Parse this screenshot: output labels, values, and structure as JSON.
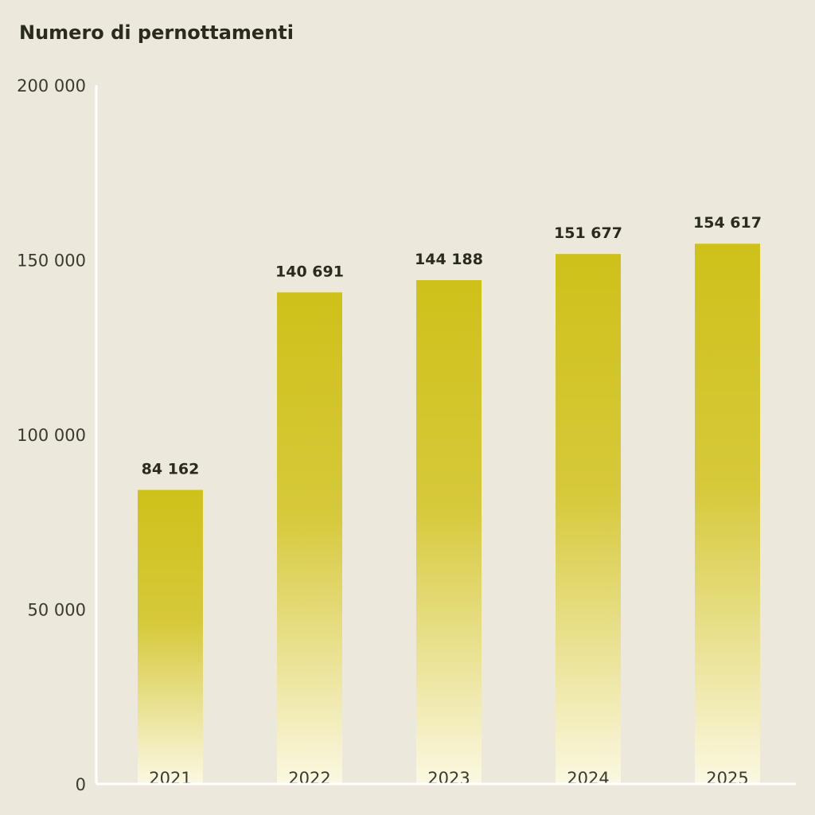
{
  "chart_data": {
    "type": "bar",
    "title": "Numero di pernottamenti",
    "categories": [
      "2021",
      "2022",
      "2023",
      "2024",
      "2025"
    ],
    "values": [
      84162,
      140691,
      144188,
      151677,
      154617
    ],
    "value_labels": [
      "84 162",
      "140 691",
      "144 188",
      "151 677",
      "154 617"
    ],
    "ylim": [
      0,
      200000
    ],
    "y_ticks": [
      0,
      50000,
      100000,
      150000,
      200000
    ],
    "y_tick_labels": [
      "0",
      "50 000",
      "100 000",
      "150 000",
      "200 000"
    ],
    "grid": false,
    "bar_color_top": "#CFC11A",
    "bar_color_bottom": "#FBF8E2",
    "axis_color": "#FFFFFF",
    "background": "#ECE8DC"
  }
}
